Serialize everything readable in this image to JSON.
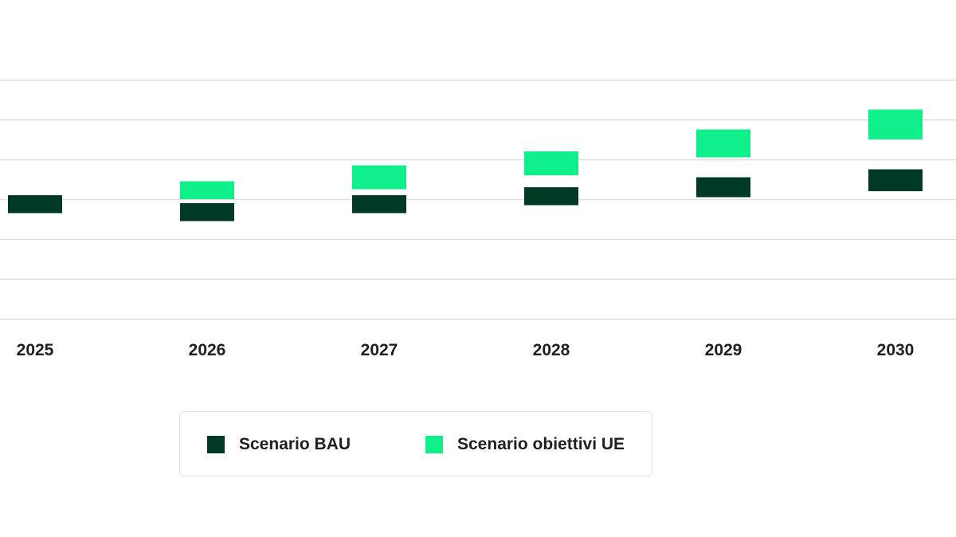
{
  "chart_data": {
    "type": "range-bar",
    "title": "",
    "xlabel": "",
    "ylabel": "",
    "categories": [
      "2025",
      "2026",
      "2027",
      "2028",
      "2029",
      "2030"
    ],
    "series": [
      {
        "name": "Scenario BAU",
        "color": "#003a24",
        "ranges": [
          [
            -0.35,
            0.1
          ],
          [
            -0.55,
            -0.1
          ],
          [
            -0.35,
            0.1
          ],
          [
            -0.15,
            0.3
          ],
          [
            0.05,
            0.55
          ],
          [
            0.2,
            0.75
          ]
        ]
      },
      {
        "name": "Scenario obiettivi UE",
        "color": "#0ff08a",
        "ranges": null
      }
    ],
    "series_ue_ranges": [
      null,
      [
        0,
        0.45
      ],
      [
        0.25,
        0.85
      ],
      [
        0.6,
        1.2
      ],
      [
        1.05,
        1.75
      ],
      [
        1.5,
        2.25
      ]
    ],
    "ylim": [
      -3,
      3
    ],
    "gridlines": [
      -3,
      -2,
      -1,
      0,
      1,
      2,
      3
    ],
    "y_tick_labels_visible": false,
    "grid": true,
    "grid_color": "#dedede",
    "legend_position": "bottom-center"
  },
  "legend": {
    "bau_label": "Scenario BAU",
    "ue_label": "Scenario obiettivi UE"
  }
}
